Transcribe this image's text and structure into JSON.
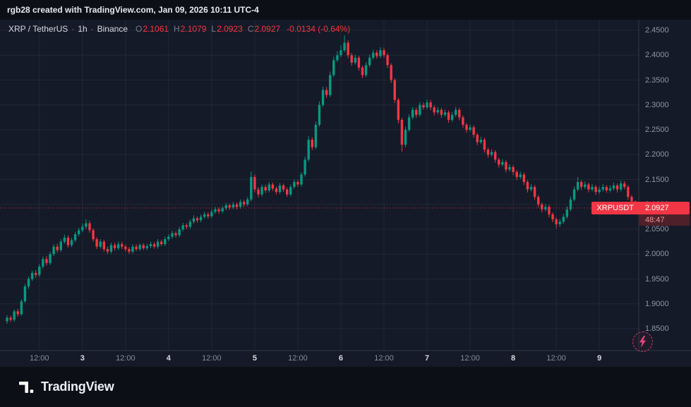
{
  "header": {
    "title": "rgb28 created with TradingView.com, Jan 09, 2026 10:11 UTC-4"
  },
  "legend": {
    "symbol": "XRP / TetherUS",
    "interval": "1h",
    "exchange": "Binance",
    "sep": "·",
    "ohlc": {
      "o_label": "O",
      "o_value": "2.1061",
      "h_label": "H",
      "h_value": "2.1079",
      "l_label": "L",
      "l_value": "2.0923",
      "c_label": "C",
      "c_value": "2.0927"
    },
    "change": "-0.0134 (-0.64%)"
  },
  "price_badge": {
    "symbol": "XRPUSDT",
    "price": "2.0927",
    "countdown": "48:47"
  },
  "footer": {
    "brand": "TradingView"
  },
  "colors": {
    "up": "#089981",
    "down": "#f23645",
    "grid": "rgba(255,255,255,0.06)",
    "border": "rgba(255,255,255,0.12)",
    "chart_bg": "#141a27",
    "page_bg": "#0c0f16",
    "flash": "#d13a6e"
  },
  "chart_data": {
    "type": "candlestick",
    "symbol": "XRPUSDT",
    "interval": "1h",
    "exchange": "Binance",
    "last_price": 2.0927,
    "last_open": 2.1061,
    "last_high": 2.1079,
    "last_low": 2.0923,
    "change": -0.0134,
    "change_pct": -0.64,
    "ylim": [
      1.84,
      2.46
    ],
    "grid": true,
    "y_ticks": [
      2.45,
      2.4,
      2.35,
      2.3,
      2.25,
      2.2,
      2.15,
      2.1,
      2.05,
      2.0,
      1.95,
      1.9,
      1.85
    ],
    "x_ticks": [
      {
        "label": "12:00",
        "idx": 9
      },
      {
        "label": "3",
        "idx": 21,
        "day": true
      },
      {
        "label": "12:00",
        "idx": 33
      },
      {
        "label": "4",
        "idx": 45,
        "day": true
      },
      {
        "label": "12:00",
        "idx": 57
      },
      {
        "label": "5",
        "idx": 69,
        "day": true
      },
      {
        "label": "12:00",
        "idx": 81
      },
      {
        "label": "6",
        "idx": 93,
        "day": true
      },
      {
        "label": "12:00",
        "idx": 105
      },
      {
        "label": "7",
        "idx": 117,
        "day": true
      },
      {
        "label": "12:00",
        "idx": 129
      },
      {
        "label": "8",
        "idx": 141,
        "day": true
      },
      {
        "label": "12:00",
        "idx": 153
      },
      {
        "label": "9",
        "idx": 165,
        "day": true
      }
    ],
    "candles": [
      [
        1.865,
        1.877,
        1.86,
        1.872
      ],
      [
        1.872,
        1.876,
        1.863,
        1.868
      ],
      [
        1.868,
        1.889,
        1.864,
        1.885
      ],
      [
        1.885,
        1.89,
        1.874,
        1.879
      ],
      [
        1.879,
        1.909,
        1.876,
        1.905
      ],
      [
        1.905,
        1.94,
        1.902,
        1.935
      ],
      [
        1.935,
        1.955,
        1.93,
        1.95
      ],
      [
        1.95,
        1.967,
        1.946,
        1.962
      ],
      [
        1.962,
        1.968,
        1.952,
        1.958
      ],
      [
        1.958,
        1.98,
        1.954,
        1.975
      ],
      [
        1.975,
        1.995,
        1.971,
        1.99
      ],
      [
        1.99,
        1.996,
        1.977,
        1.982
      ],
      [
        1.982,
        2.005,
        1.978,
        2.0
      ],
      [
        2.0,
        2.02,
        1.996,
        2.015
      ],
      [
        2.015,
        2.021,
        2.003,
        2.008
      ],
      [
        2.008,
        2.03,
        2.004,
        2.025
      ],
      [
        2.025,
        2.039,
        2.021,
        2.033
      ],
      [
        2.033,
        2.038,
        2.013,
        2.018
      ],
      [
        2.018,
        2.033,
        2.014,
        2.028
      ],
      [
        2.028,
        2.045,
        2.024,
        2.04
      ],
      [
        2.04,
        2.053,
        2.036,
        2.048
      ],
      [
        2.048,
        2.062,
        2.044,
        2.055
      ],
      [
        2.055,
        2.07,
        2.051,
        2.062
      ],
      [
        2.062,
        2.067,
        2.043,
        2.048
      ],
      [
        2.048,
        2.052,
        2.025,
        2.03
      ],
      [
        2.03,
        2.034,
        2.01,
        2.015
      ],
      [
        2.015,
        2.03,
        2.011,
        2.025
      ],
      [
        2.025,
        2.029,
        2.005,
        2.01
      ],
      [
        2.01,
        2.015,
        2.0,
        2.005
      ],
      [
        2.005,
        2.023,
        2.001,
        2.018
      ],
      [
        2.018,
        2.023,
        2.007,
        2.012
      ],
      [
        2.012,
        2.025,
        2.008,
        2.02
      ],
      [
        2.02,
        2.025,
        2.01,
        2.015
      ],
      [
        2.015,
        2.019,
        2.005,
        2.01
      ],
      [
        2.01,
        2.014,
        2.0,
        2.005
      ],
      [
        2.005,
        2.02,
        2.001,
        2.015
      ],
      [
        2.015,
        2.02,
        2.006,
        2.01
      ],
      [
        2.01,
        2.022,
        2.006,
        2.018
      ],
      [
        2.018,
        2.022,
        2.008,
        2.012
      ],
      [
        2.012,
        2.021,
        2.008,
        2.016
      ],
      [
        2.016,
        2.025,
        2.012,
        2.02
      ],
      [
        2.02,
        2.024,
        2.011,
        2.015
      ],
      [
        2.015,
        2.03,
        2.011,
        2.025
      ],
      [
        2.025,
        2.029,
        2.016,
        2.02
      ],
      [
        2.02,
        2.035,
        2.016,
        2.03
      ],
      [
        2.03,
        2.04,
        2.026,
        2.035
      ],
      [
        2.035,
        2.047,
        2.031,
        2.042
      ],
      [
        2.042,
        2.046,
        2.033,
        2.038
      ],
      [
        2.038,
        2.055,
        2.034,
        2.05
      ],
      [
        2.05,
        2.063,
        2.046,
        2.058
      ],
      [
        2.058,
        2.062,
        2.05,
        2.055
      ],
      [
        2.055,
        2.07,
        2.051,
        2.065
      ],
      [
        2.065,
        2.078,
        2.061,
        2.072
      ],
      [
        2.072,
        2.076,
        2.063,
        2.068
      ],
      [
        2.068,
        2.08,
        2.064,
        2.075
      ],
      [
        2.075,
        2.085,
        2.071,
        2.08
      ],
      [
        2.08,
        2.084,
        2.071,
        2.076
      ],
      [
        2.076,
        2.09,
        2.072,
        2.085
      ],
      [
        2.085,
        2.095,
        2.081,
        2.09
      ],
      [
        2.09,
        2.094,
        2.081,
        2.086
      ],
      [
        2.086,
        2.097,
        2.082,
        2.092
      ],
      [
        2.092,
        2.103,
        2.088,
        2.098
      ],
      [
        2.098,
        2.102,
        2.089,
        2.094
      ],
      [
        2.094,
        2.105,
        2.09,
        2.1
      ],
      [
        2.1,
        2.104,
        2.09,
        2.095
      ],
      [
        2.095,
        2.11,
        2.091,
        2.105
      ],
      [
        2.105,
        2.109,
        2.095,
        2.1
      ],
      [
        2.1,
        2.115,
        2.096,
        2.11
      ],
      [
        2.11,
        2.166,
        2.106,
        2.155
      ],
      [
        2.155,
        2.16,
        2.124,
        2.13
      ],
      [
        2.13,
        2.135,
        2.114,
        2.12
      ],
      [
        2.12,
        2.14,
        2.116,
        2.135
      ],
      [
        2.135,
        2.14,
        2.123,
        2.128
      ],
      [
        2.128,
        2.145,
        2.124,
        2.14
      ],
      [
        2.14,
        2.144,
        2.127,
        2.132
      ],
      [
        2.132,
        2.136,
        2.12,
        2.125
      ],
      [
        2.125,
        2.143,
        2.121,
        2.138
      ],
      [
        2.138,
        2.142,
        2.125,
        2.13
      ],
      [
        2.13,
        2.134,
        2.115,
        2.12
      ],
      [
        2.12,
        2.14,
        2.116,
        2.135
      ],
      [
        2.135,
        2.15,
        2.131,
        2.145
      ],
      [
        2.145,
        2.149,
        2.135,
        2.14
      ],
      [
        2.14,
        2.165,
        2.136,
        2.16
      ],
      [
        2.16,
        2.196,
        2.156,
        2.19
      ],
      [
        2.19,
        2.237,
        2.186,
        2.23
      ],
      [
        2.23,
        2.235,
        2.209,
        2.215
      ],
      [
        2.215,
        2.267,
        2.211,
        2.26
      ],
      [
        2.26,
        2.307,
        2.256,
        2.3
      ],
      [
        2.3,
        2.337,
        2.296,
        2.33
      ],
      [
        2.33,
        2.336,
        2.314,
        2.32
      ],
      [
        2.32,
        2.367,
        2.316,
        2.36
      ],
      [
        2.36,
        2.397,
        2.356,
        2.39
      ],
      [
        2.39,
        2.408,
        2.386,
        2.4
      ],
      [
        2.4,
        2.42,
        2.396,
        2.41
      ],
      [
        2.41,
        2.44,
        2.406,
        2.425
      ],
      [
        2.425,
        2.43,
        2.394,
        2.4
      ],
      [
        2.4,
        2.405,
        2.379,
        2.385
      ],
      [
        2.385,
        2.401,
        2.381,
        2.395
      ],
      [
        2.395,
        2.399,
        2.369,
        2.375
      ],
      [
        2.375,
        2.379,
        2.354,
        2.36
      ],
      [
        2.36,
        2.386,
        2.356,
        2.38
      ],
      [
        2.38,
        2.401,
        2.376,
        2.395
      ],
      [
        2.395,
        2.411,
        2.391,
        2.405
      ],
      [
        2.405,
        2.41,
        2.393,
        2.398
      ],
      [
        2.398,
        2.416,
        2.394,
        2.41
      ],
      [
        2.41,
        2.415,
        2.395,
        2.4
      ],
      [
        2.4,
        2.404,
        2.374,
        2.38
      ],
      [
        2.38,
        2.384,
        2.344,
        2.35
      ],
      [
        2.35,
        2.354,
        2.304,
        2.31
      ],
      [
        2.31,
        2.314,
        2.263,
        2.27
      ],
      [
        2.27,
        2.274,
        2.206,
        2.22
      ],
      [
        2.22,
        2.256,
        2.215,
        2.25
      ],
      [
        2.25,
        2.281,
        2.246,
        2.275
      ],
      [
        2.275,
        2.296,
        2.271,
        2.29
      ],
      [
        2.29,
        2.295,
        2.274,
        2.28
      ],
      [
        2.28,
        2.306,
        2.276,
        2.3
      ],
      [
        2.3,
        2.305,
        2.29,
        2.295
      ],
      [
        2.295,
        2.311,
        2.291,
        2.305
      ],
      [
        2.305,
        2.31,
        2.289,
        2.295
      ],
      [
        2.295,
        2.299,
        2.279,
        2.285
      ],
      [
        2.285,
        2.296,
        2.281,
        2.29
      ],
      [
        2.29,
        2.294,
        2.274,
        2.28
      ],
      [
        2.28,
        2.291,
        2.276,
        2.285
      ],
      [
        2.285,
        2.289,
        2.264,
        2.27
      ],
      [
        2.27,
        2.286,
        2.266,
        2.28
      ],
      [
        2.28,
        2.296,
        2.276,
        2.29
      ],
      [
        2.29,
        2.294,
        2.269,
        2.275
      ],
      [
        2.275,
        2.279,
        2.254,
        2.26
      ],
      [
        2.26,
        2.264,
        2.244,
        2.25
      ],
      [
        2.25,
        2.261,
        2.246,
        2.255
      ],
      [
        2.255,
        2.259,
        2.234,
        2.24
      ],
      [
        2.24,
        2.244,
        2.219,
        2.225
      ],
      [
        2.225,
        2.236,
        2.221,
        2.23
      ],
      [
        2.23,
        2.234,
        2.204,
        2.21
      ],
      [
        2.21,
        2.214,
        2.194,
        2.2
      ],
      [
        2.2,
        2.211,
        2.196,
        2.205
      ],
      [
        2.205,
        2.209,
        2.184,
        2.19
      ],
      [
        2.19,
        2.194,
        2.174,
        2.18
      ],
      [
        2.18,
        2.191,
        2.176,
        2.185
      ],
      [
        2.185,
        2.189,
        2.164,
        2.17
      ],
      [
        2.17,
        2.181,
        2.166,
        2.175
      ],
      [
        2.175,
        2.179,
        2.159,
        2.165
      ],
      [
        2.165,
        2.169,
        2.149,
        2.155
      ],
      [
        2.155,
        2.166,
        2.151,
        2.16
      ],
      [
        2.16,
        2.164,
        2.139,
        2.145
      ],
      [
        2.145,
        2.149,
        2.124,
        2.13
      ],
      [
        2.13,
        2.141,
        2.126,
        2.135
      ],
      [
        2.135,
        2.139,
        2.109,
        2.115
      ],
      [
        2.115,
        2.119,
        2.094,
        2.1
      ],
      [
        2.1,
        2.104,
        2.084,
        2.09
      ],
      [
        2.09,
        2.101,
        2.086,
        2.095
      ],
      [
        2.095,
        2.099,
        2.074,
        2.08
      ],
      [
        2.08,
        2.084,
        2.064,
        2.07
      ],
      [
        2.07,
        2.074,
        2.052,
        2.06
      ],
      [
        2.06,
        2.071,
        2.055,
        2.065
      ],
      [
        2.065,
        2.081,
        2.061,
        2.075
      ],
      [
        2.075,
        2.096,
        2.071,
        2.09
      ],
      [
        2.09,
        2.116,
        2.086,
        2.11
      ],
      [
        2.11,
        2.136,
        2.106,
        2.13
      ],
      [
        2.13,
        2.155,
        2.126,
        2.145
      ],
      [
        2.145,
        2.149,
        2.129,
        2.135
      ],
      [
        2.135,
        2.146,
        2.131,
        2.14
      ],
      [
        2.14,
        2.144,
        2.124,
        2.13
      ],
      [
        2.13,
        2.141,
        2.126,
        2.135
      ],
      [
        2.135,
        2.139,
        2.119,
        2.125
      ],
      [
        2.125,
        2.136,
        2.121,
        2.13
      ],
      [
        2.13,
        2.141,
        2.126,
        2.135
      ],
      [
        2.135,
        2.139,
        2.123,
        2.128
      ],
      [
        2.128,
        2.138,
        2.124,
        2.132
      ],
      [
        2.132,
        2.144,
        2.128,
        2.138
      ],
      [
        2.138,
        2.142,
        2.124,
        2.13
      ],
      [
        2.13,
        2.148,
        2.126,
        2.142
      ],
      [
        2.142,
        2.147,
        2.13,
        2.135
      ],
      [
        2.135,
        2.139,
        2.109,
        2.115
      ],
      [
        2.115,
        2.119,
        2.101,
        2.1061
      ],
      [
        2.1061,
        2.1079,
        2.0923,
        2.0927
      ]
    ]
  }
}
